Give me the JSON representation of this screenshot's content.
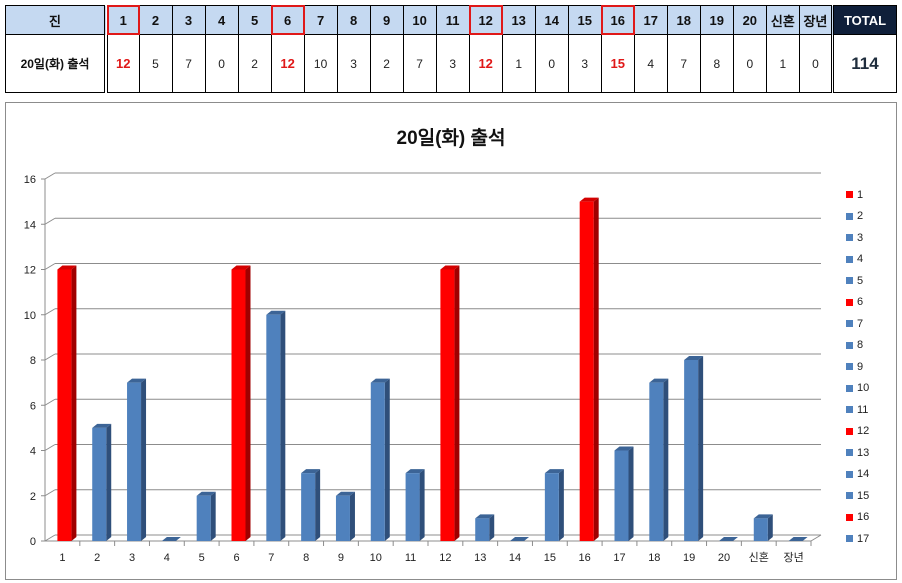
{
  "table": {
    "corner_label": "진",
    "row_label": "20일(화) 출석",
    "columns": [
      "1",
      "2",
      "3",
      "4",
      "5",
      "6",
      "7",
      "8",
      "9",
      "10",
      "11",
      "12",
      "13",
      "14",
      "15",
      "16",
      "17",
      "18",
      "19",
      "20",
      "신혼",
      "장년"
    ],
    "values": [
      "12",
      "5",
      "7",
      "0",
      "2",
      "12",
      "10",
      "3",
      "2",
      "7",
      "3",
      "12",
      "1",
      "0",
      "3",
      "15",
      "4",
      "7",
      "8",
      "0",
      "1",
      "0"
    ],
    "highlighted_columns": [
      "1",
      "6",
      "12",
      "16"
    ],
    "total_label": "TOTAL",
    "total_value": "114"
  },
  "colors": {
    "header_bg": "#c5d9f1",
    "total_header_bg": "#0f1f3a",
    "highlight": "#e01818",
    "bar_red": "#ff0000",
    "bar_blue": "#4f81bd"
  },
  "chart_data": {
    "type": "bar",
    "title": "20일(화) 출석",
    "xlabel": "",
    "ylabel": "",
    "categories": [
      "1",
      "2",
      "3",
      "4",
      "5",
      "6",
      "7",
      "8",
      "9",
      "10",
      "11",
      "12",
      "13",
      "14",
      "15",
      "16",
      "17",
      "18",
      "19",
      "20",
      "신혼",
      "장년"
    ],
    "values": [
      12,
      5,
      7,
      0,
      2,
      12,
      10,
      3,
      2,
      7,
      3,
      12,
      1,
      0,
      3,
      15,
      4,
      7,
      8,
      0,
      1,
      0
    ],
    "bar_colors": [
      "red",
      "blue",
      "blue",
      "blue",
      "blue",
      "red",
      "blue",
      "blue",
      "blue",
      "blue",
      "blue",
      "red",
      "blue",
      "blue",
      "blue",
      "red",
      "blue",
      "blue",
      "blue",
      "blue",
      "blue",
      "blue"
    ],
    "ylim": [
      0,
      16
    ],
    "yticks": [
      0,
      2,
      4,
      6,
      8,
      10,
      12,
      14,
      16
    ],
    "grid": true,
    "style": "3d-column",
    "legend_position": "right",
    "legend": [
      {
        "label": "1",
        "color": "red"
      },
      {
        "label": "2",
        "color": "blue"
      },
      {
        "label": "3",
        "color": "blue"
      },
      {
        "label": "4",
        "color": "blue"
      },
      {
        "label": "5",
        "color": "blue"
      },
      {
        "label": "6",
        "color": "red"
      },
      {
        "label": "7",
        "color": "blue"
      },
      {
        "label": "8",
        "color": "blue"
      },
      {
        "label": "9",
        "color": "blue"
      },
      {
        "label": "10",
        "color": "blue"
      },
      {
        "label": "11",
        "color": "blue"
      },
      {
        "label": "12",
        "color": "red"
      },
      {
        "label": "13",
        "color": "blue"
      },
      {
        "label": "14",
        "color": "blue"
      },
      {
        "label": "15",
        "color": "blue"
      },
      {
        "label": "16",
        "color": "red"
      },
      {
        "label": "17",
        "color": "blue"
      }
    ]
  }
}
